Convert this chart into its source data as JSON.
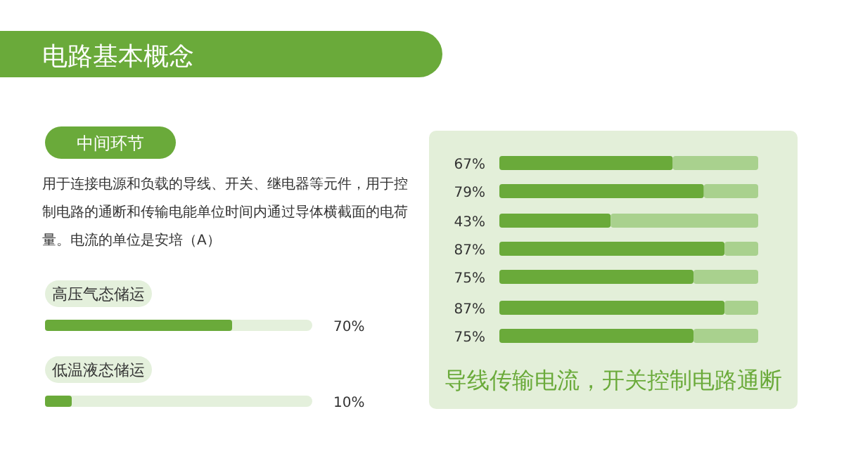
{
  "chart_data": [
    {
      "type": "bar",
      "orientation": "horizontal",
      "title": "电路基本概念",
      "subtitle": "中间环节",
      "annotations": [
        "用于连接电源和负载的导线、开关、继电器等元件，用于控制电路的通断和传输电能单位时间内通过导体横截面的电荷量。电流的单位是安培（A）"
      ],
      "categories": [
        "高压气态储运",
        "低温液态储运"
      ],
      "values": [
        70,
        10
      ],
      "value_labels": [
        "70%",
        "10%"
      ],
      "color": "#6aaa3a",
      "xlim": [
        0,
        100
      ]
    },
    {
      "type": "bar",
      "orientation": "horizontal",
      "annotations": [
        "导线传输电流，开关控制电路通断"
      ],
      "categories": [
        null,
        null,
        null,
        null,
        null,
        null,
        null
      ],
      "stacked": true,
      "xlim": [
        0,
        100
      ],
      "series": [
        {
          "color": "#6aaa3a",
          "values": [
            67,
            79,
            43,
            87,
            75,
            87,
            75
          ],
          "value_labels": [
            "67%",
            "79%",
            "43%",
            "87%",
            "75%",
            "87%",
            "75%"
          ]
        },
        {
          "color": "#a9d18e",
          "values": [
            33,
            21,
            57,
            13,
            25,
            13,
            25
          ]
        }
      ]
    }
  ]
}
